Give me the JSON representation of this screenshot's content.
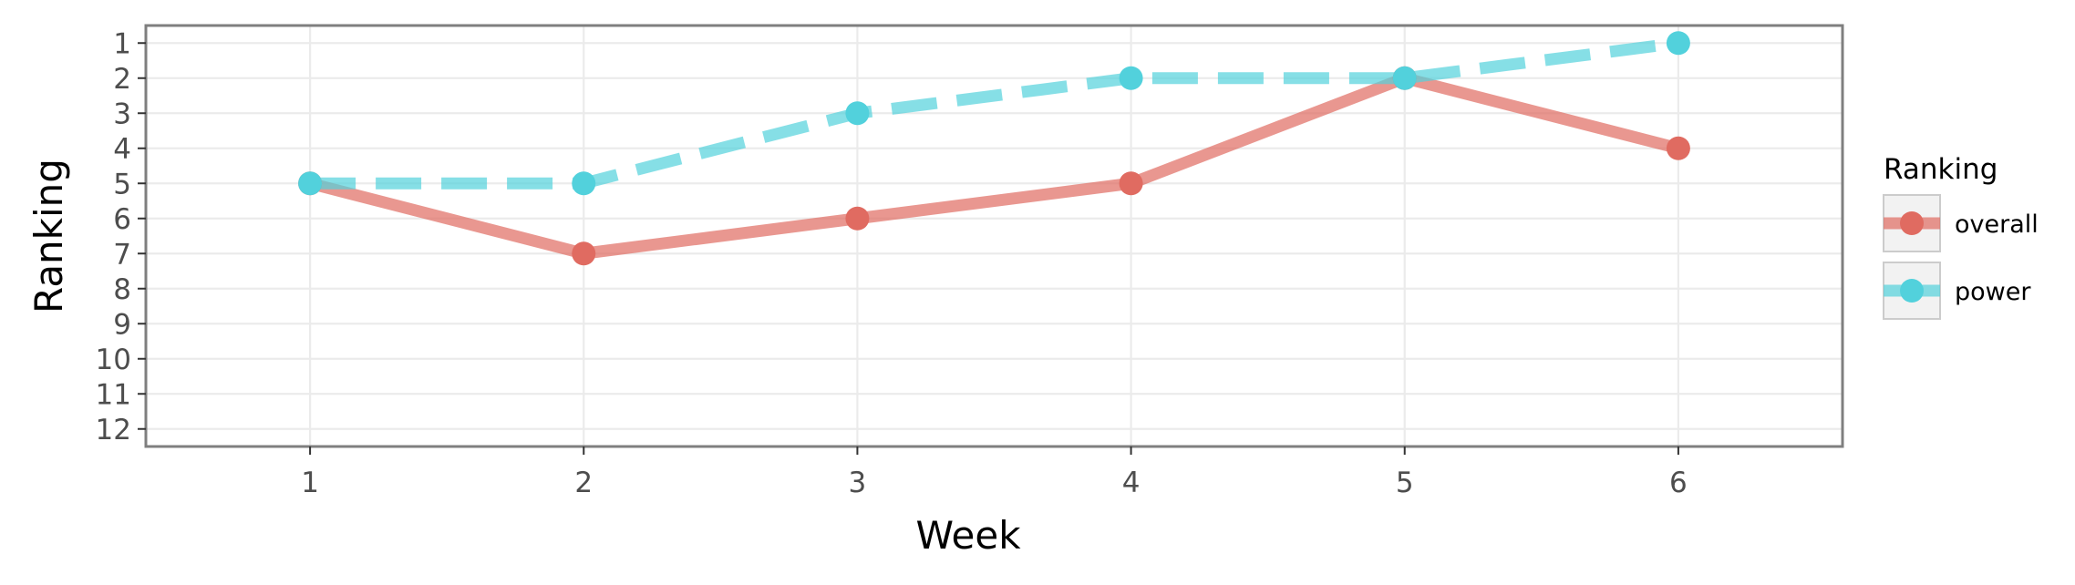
{
  "chart_data": {
    "type": "line",
    "title": "",
    "xlabel": "Week",
    "ylabel": "Ranking",
    "x": [
      1,
      2,
      3,
      4,
      5,
      6
    ],
    "xlim": [
      0.4,
      6.6
    ],
    "ylim": [
      12.5,
      0.5
    ],
    "y_reversed": true,
    "x_ticks": [
      1,
      2,
      3,
      4,
      5,
      6
    ],
    "y_ticks": [
      1,
      2,
      3,
      4,
      5,
      6,
      7,
      8,
      9,
      10,
      11,
      12
    ],
    "grid": true,
    "legend": {
      "title": "Ranking",
      "position": "right"
    },
    "series": [
      {
        "name": "overall",
        "values": [
          5,
          7,
          6,
          5,
          2,
          4
        ],
        "color": "#e06b61",
        "line_style": "solid"
      },
      {
        "name": "power",
        "values": [
          5,
          5,
          3,
          2,
          2,
          1
        ],
        "color": "#52d1dc",
        "line_style": "dashed"
      }
    ]
  }
}
